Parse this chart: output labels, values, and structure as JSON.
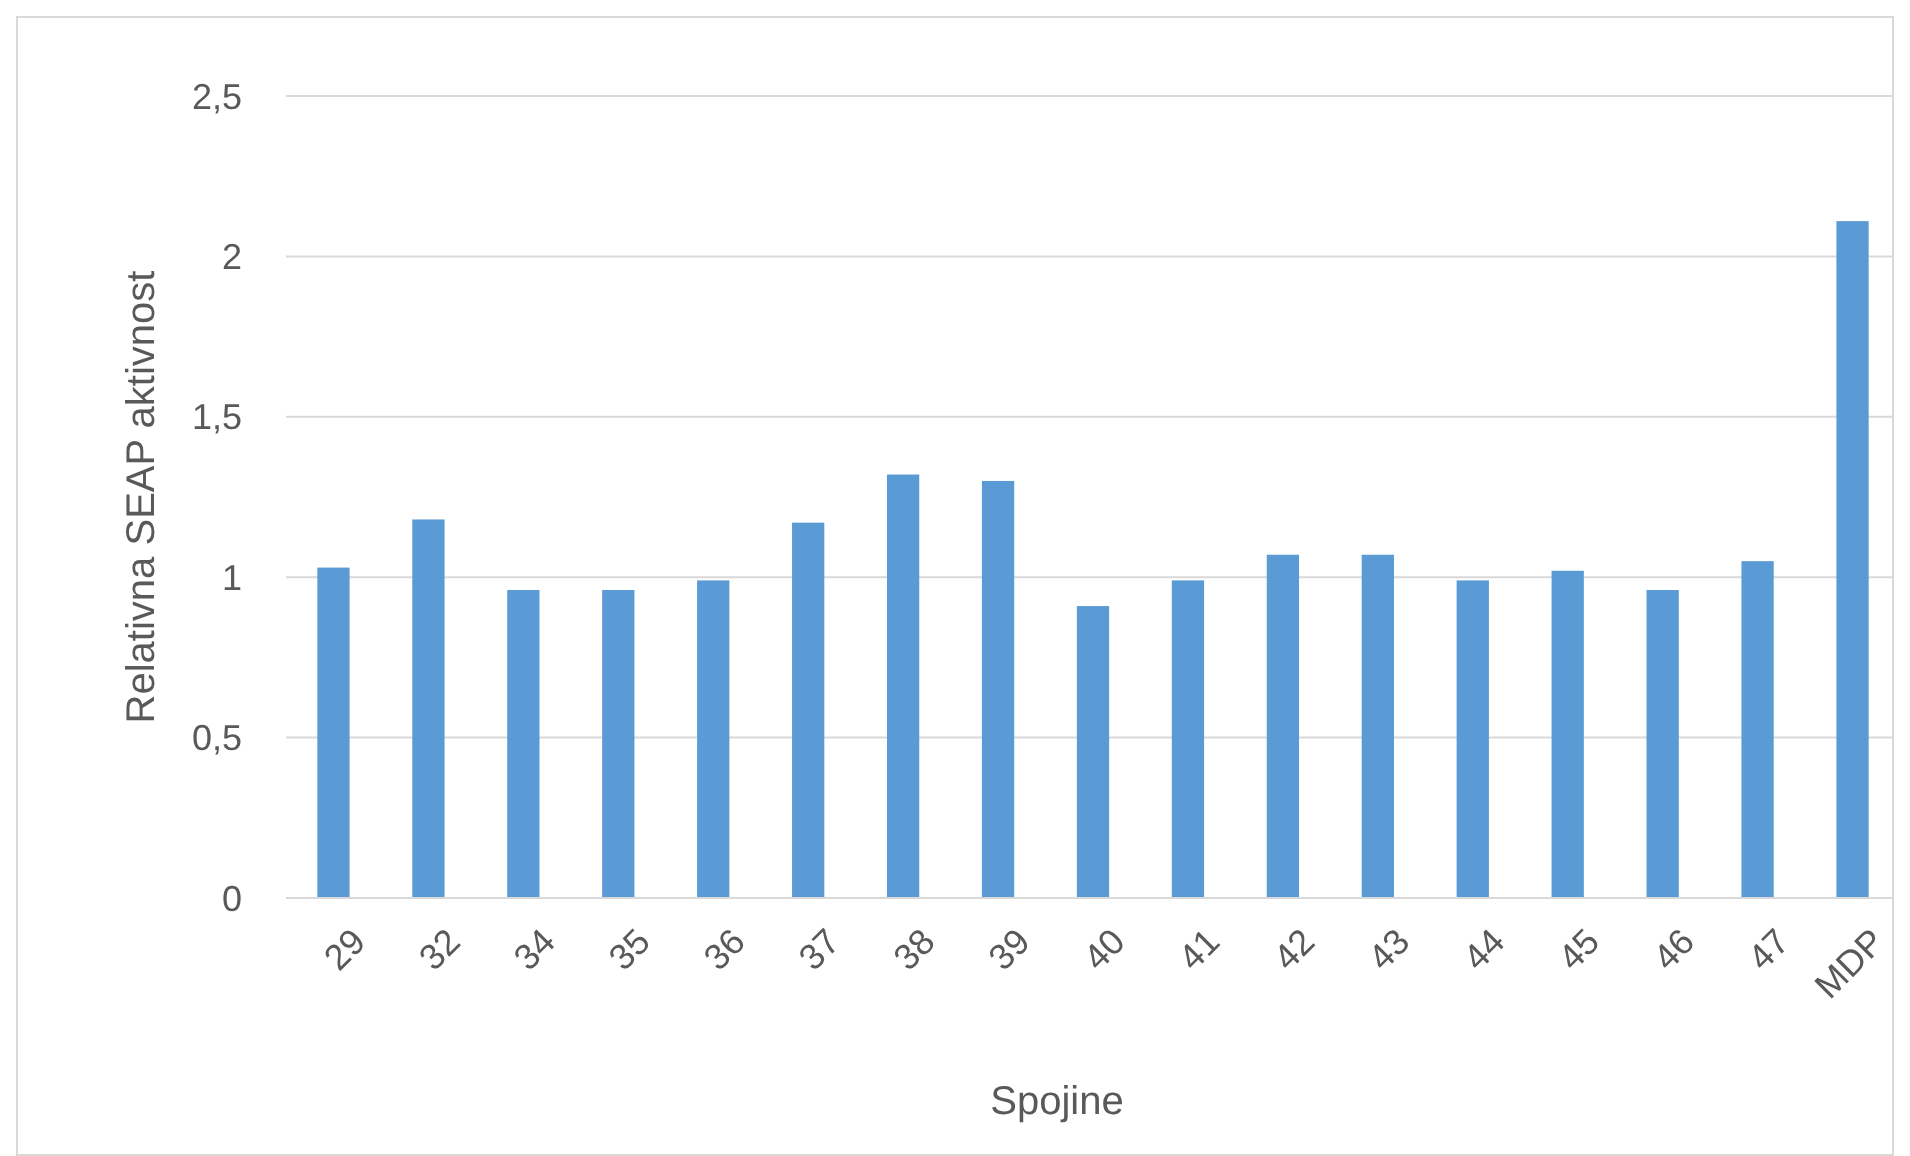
{
  "chart_data": {
    "type": "bar",
    "xlabel": "Spojine",
    "ylabel": "Relativna SEAP aktivnost",
    "categories": [
      "29",
      "32",
      "34",
      "35",
      "36",
      "37",
      "38",
      "39",
      "40",
      "41",
      "42",
      "43",
      "44",
      "45",
      "46",
      "47",
      "MDP"
    ],
    "values": [
      1.03,
      1.18,
      0.96,
      0.96,
      0.99,
      1.17,
      1.32,
      1.3,
      0.91,
      0.99,
      1.07,
      1.07,
      0.99,
      1.02,
      0.96,
      1.05,
      2.11
    ],
    "color": "#5b9bd5",
    "ylim": [
      0,
      2.5
    ],
    "yticks": [
      0,
      {
        "value": 0.5,
        "label": "0,5"
      },
      1,
      {
        "value": 1.5,
        "label": "1,5"
      },
      2,
      {
        "value": 2.5,
        "label": "2,5"
      }
    ],
    "grid": "y"
  }
}
